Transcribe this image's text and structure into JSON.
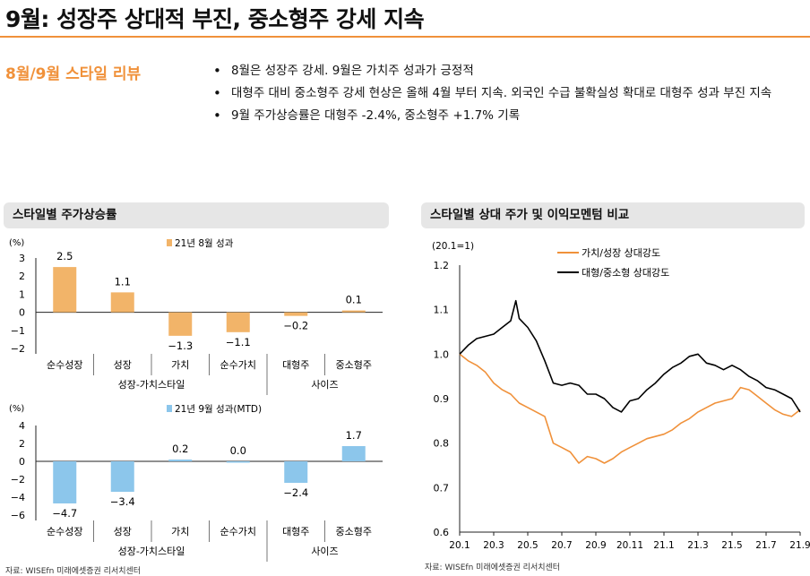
{
  "title": "9월: 성장주 상대적 부진, 중소형주 강세 지속",
  "review_label": "8월/9월 스타일 리뷰",
  "bullets": [
    "8월은 성장주 강세. 9월은 가치주 성과가 긍정적",
    "대형주 대비 중소형주 강세 현상은 올해 4월 부터 지속. 외국인 수급 불확실성 확대로 대형주 성과 부진 지속",
    "9월 주가상승률은 대형주 -2.4%, 중소형주 +1.7% 기록"
  ],
  "left_panel": {
    "title": "스타일별 주가상승률",
    "source": "자료: WISEfn 미래에셋증권 리서치센터"
  },
  "right_panel": {
    "title": "스타일별 상대 주가 및 이익모멘텀 비교",
    "source": "자료: WISEfn 미래에셋증권 리서치센터"
  },
  "colors": {
    "orange": "#f0913a",
    "bar_orange": "#f2b469",
    "bar_blue": "#8cc6eb",
    "black": "#000000"
  },
  "chart_data": [
    {
      "type": "bar",
      "unit": "(%)",
      "legend": "21년 8월 성과",
      "categories": [
        "순수성장",
        "성장",
        "가치",
        "순수가치",
        "대형주",
        "중소형주"
      ],
      "values": [
        2.5,
        1.1,
        -1.3,
        -1.1,
        -0.2,
        0.1
      ],
      "value_labels": [
        "2.5",
        "1.1",
        "-1.3",
        "-1.1",
        "-0.2",
        "0.1"
      ],
      "group_labels": [
        "성장-가치스타일",
        "사이즈"
      ],
      "yticks": [
        "3",
        "2",
        "1",
        "0",
        "-1",
        "-2"
      ],
      "ylim": [
        -2,
        3
      ]
    },
    {
      "type": "bar",
      "unit": "(%)",
      "legend": "21년 9월 성과(MTD)",
      "categories": [
        "순수성장",
        "성장",
        "가치",
        "순수가치",
        "대형주",
        "중소형주"
      ],
      "values": [
        -4.7,
        -3.4,
        0.2,
        0.0,
        -2.4,
        1.7
      ],
      "value_labels": [
        "-4.7",
        "-3.4",
        "0.2",
        "0.0",
        "-2.4",
        "1.7"
      ],
      "group_labels": [
        "성장-가치스타일",
        "사이즈"
      ],
      "yticks": [
        "4",
        "2",
        "0",
        "-2",
        "-4",
        "-6"
      ],
      "ylim": [
        -6,
        4
      ]
    },
    {
      "type": "line",
      "unit": "(20.1=1)",
      "ylim": [
        0.6,
        1.2
      ],
      "yticks": [
        "1.2",
        "1.1",
        "1.0",
        "0.9",
        "0.8",
        "0.7",
        "0.6"
      ],
      "xticks": [
        "20.1",
        "20.3",
        "20.5",
        "20.7",
        "20.9",
        "20.11",
        "21.1",
        "21.3",
        "21.5",
        "21.7",
        "21.9"
      ],
      "x_range": [
        0,
        20
      ],
      "series": [
        {
          "name": "가치/성장 상대강도",
          "color": "#f0913a",
          "points": [
            [
              0,
              1.0
            ],
            [
              0.5,
              0.985
            ],
            [
              1.0,
              0.975
            ],
            [
              1.5,
              0.96
            ],
            [
              2.0,
              0.935
            ],
            [
              2.5,
              0.92
            ],
            [
              3.0,
              0.91
            ],
            [
              3.5,
              0.89
            ],
            [
              4.0,
              0.88
            ],
            [
              4.5,
              0.87
            ],
            [
              5.0,
              0.86
            ],
            [
              5.5,
              0.8
            ],
            [
              6.0,
              0.79
            ],
            [
              6.5,
              0.78
            ],
            [
              7.0,
              0.755
            ],
            [
              7.5,
              0.77
            ],
            [
              8.0,
              0.765
            ],
            [
              8.5,
              0.755
            ],
            [
              9.0,
              0.765
            ],
            [
              9.5,
              0.78
            ],
            [
              10.0,
              0.79
            ],
            [
              10.5,
              0.8
            ],
            [
              11.0,
              0.81
            ],
            [
              11.5,
              0.815
            ],
            [
              12.0,
              0.82
            ],
            [
              12.5,
              0.83
            ],
            [
              13.0,
              0.845
            ],
            [
              13.5,
              0.855
            ],
            [
              14.0,
              0.87
            ],
            [
              14.5,
              0.88
            ],
            [
              15.0,
              0.89
            ],
            [
              15.5,
              0.895
            ],
            [
              16.0,
              0.9
            ],
            [
              16.5,
              0.925
            ],
            [
              17.0,
              0.92
            ],
            [
              17.5,
              0.905
            ],
            [
              18.0,
              0.89
            ],
            [
              18.5,
              0.875
            ],
            [
              19.0,
              0.865
            ],
            [
              19.5,
              0.86
            ],
            [
              20.0,
              0.875
            ]
          ]
        },
        {
          "name": "대형/중소형 상대강도",
          "color": "#000000",
          "points": [
            [
              0,
              1.0
            ],
            [
              0.5,
              1.02
            ],
            [
              1.0,
              1.035
            ],
            [
              1.5,
              1.04
            ],
            [
              2.0,
              1.045
            ],
            [
              2.5,
              1.06
            ],
            [
              3.0,
              1.075
            ],
            [
              3.3,
              1.12
            ],
            [
              3.5,
              1.08
            ],
            [
              4.0,
              1.06
            ],
            [
              4.5,
              1.03
            ],
            [
              5.0,
              0.985
            ],
            [
              5.5,
              0.935
            ],
            [
              6.0,
              0.93
            ],
            [
              6.5,
              0.935
            ],
            [
              7.0,
              0.93
            ],
            [
              7.5,
              0.91
            ],
            [
              8.0,
              0.91
            ],
            [
              8.5,
              0.9
            ],
            [
              9.0,
              0.88
            ],
            [
              9.5,
              0.87
            ],
            [
              10.0,
              0.895
            ],
            [
              10.5,
              0.9
            ],
            [
              11.0,
              0.92
            ],
            [
              11.5,
              0.935
            ],
            [
              12.0,
              0.955
            ],
            [
              12.5,
              0.97
            ],
            [
              13.0,
              0.98
            ],
            [
              13.5,
              0.995
            ],
            [
              14.0,
              1.0
            ],
            [
              14.5,
              0.98
            ],
            [
              15.0,
              0.975
            ],
            [
              15.5,
              0.965
            ],
            [
              16.0,
              0.975
            ],
            [
              16.5,
              0.965
            ],
            [
              17.0,
              0.95
            ],
            [
              17.5,
              0.94
            ],
            [
              18.0,
              0.925
            ],
            [
              18.5,
              0.92
            ],
            [
              19.0,
              0.91
            ],
            [
              19.5,
              0.9
            ],
            [
              20.0,
              0.87
            ]
          ]
        }
      ]
    }
  ]
}
